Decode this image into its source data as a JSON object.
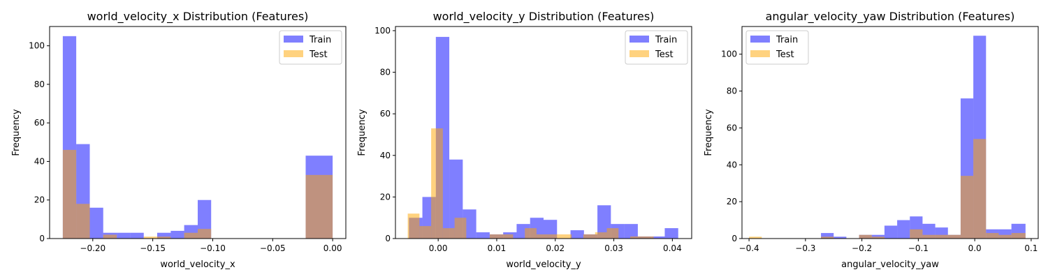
{
  "chart_data": [
    {
      "type": "bar",
      "title": "world_velocity_x Distribution (Features)",
      "xlabel": "world_velocity_x",
      "ylabel": "Frequency",
      "xlim": [
        -0.236,
        0.011
      ],
      "ylim": [
        0,
        110
      ],
      "xticks": [
        -0.2,
        -0.15,
        -0.1,
        -0.05,
        0.0
      ],
      "xtick_labels": [
        "−0.20",
        "−0.15",
        "−0.10",
        "−0.05",
        "0.00"
      ],
      "yticks": [
        0,
        20,
        40,
        60,
        80,
        100
      ],
      "ytick_labels": [
        "0",
        "20",
        "40",
        "60",
        "80",
        "100"
      ],
      "legend": "top-right",
      "series": [
        {
          "name": "Train",
          "color": "#0000ff",
          "alpha": 0.5,
          "bins": [
            [
              -0.225,
              -0.2138,
              105
            ],
            [
              -0.2138,
              -0.2025,
              49
            ],
            [
              -0.2025,
              -0.1913,
              16
            ],
            [
              -0.1913,
              -0.18,
              3
            ],
            [
              -0.18,
              -0.1688,
              3
            ],
            [
              -0.1688,
              -0.1575,
              3
            ],
            [
              -0.1463,
              -0.135,
              3
            ],
            [
              -0.135,
              -0.1238,
              4
            ],
            [
              -0.1238,
              -0.1125,
              7
            ],
            [
              -0.1125,
              -0.1013,
              20
            ],
            [
              -0.0225,
              0.0,
              43
            ]
          ]
        },
        {
          "name": "Test",
          "color": "#ffa500",
          "alpha": 0.5,
          "bins": [
            [
              -0.225,
              -0.2138,
              46
            ],
            [
              -0.2138,
              -0.2025,
              18
            ],
            [
              -0.1913,
              -0.18,
              2
            ],
            [
              -0.1575,
              -0.1463,
              1
            ],
            [
              -0.1463,
              -0.135,
              1
            ],
            [
              -0.1238,
              -0.1125,
              3
            ],
            [
              -0.1125,
              -0.1013,
              5
            ],
            [
              -0.0225,
              0.0,
              33
            ]
          ]
        }
      ]
    },
    {
      "type": "bar",
      "title": "world_velocity_y Distribution (Features)",
      "xlabel": "world_velocity_y",
      "ylabel": "Frequency",
      "xlim": [
        -0.0073,
        0.0433
      ],
      "ylim": [
        0,
        102
      ],
      "xticks": [
        0.0,
        0.01,
        0.02,
        0.03,
        0.04
      ],
      "xtick_labels": [
        "0.00",
        "0.01",
        "0.02",
        "0.03",
        "0.04"
      ],
      "yticks": [
        0,
        20,
        40,
        60,
        80,
        100
      ],
      "ytick_labels": [
        "0",
        "20",
        "40",
        "60",
        "80",
        "100"
      ],
      "legend": "top-right",
      "series": [
        {
          "name": "Train",
          "color": "#0000ff",
          "alpha": 0.5,
          "bins": [
            [
              -0.005,
              -0.0027,
              10
            ],
            [
              -0.0027,
              -0.0004,
              20
            ],
            [
              -0.0004,
              0.0019,
              97
            ],
            [
              0.0019,
              0.0042,
              38
            ],
            [
              0.0042,
              0.0065,
              14
            ],
            [
              0.0065,
              0.0088,
              3
            ],
            [
              0.0088,
              0.0111,
              2
            ],
            [
              0.0111,
              0.0134,
              3
            ],
            [
              0.0134,
              0.0157,
              7
            ],
            [
              0.0157,
              0.018,
              10
            ],
            [
              0.018,
              0.0203,
              9
            ],
            [
              0.0226,
              0.0249,
              4
            ],
            [
              0.0249,
              0.0272,
              2
            ],
            [
              0.0272,
              0.0295,
              16
            ],
            [
              0.0295,
              0.0318,
              7
            ],
            [
              0.0318,
              0.0341,
              7
            ],
            [
              0.0341,
              0.0364,
              1
            ],
            [
              0.0364,
              0.0387,
              1
            ],
            [
              0.0387,
              0.041,
              5
            ]
          ]
        },
        {
          "name": "Test",
          "color": "#ffa500",
          "alpha": 0.5,
          "bins": [
            [
              -0.0052,
              -0.0032,
              12
            ],
            [
              -0.0032,
              -0.0012,
              6
            ],
            [
              -0.0012,
              0.0008,
              53
            ],
            [
              0.0008,
              0.0028,
              5
            ],
            [
              0.0028,
              0.0048,
              10
            ],
            [
              0.0088,
              0.0108,
              2
            ],
            [
              0.0108,
              0.0128,
              2
            ],
            [
              0.0148,
              0.0168,
              5
            ],
            [
              0.0168,
              0.0188,
              2
            ],
            [
              0.0188,
              0.0208,
              2
            ],
            [
              0.0208,
              0.0228,
              2
            ],
            [
              0.0248,
              0.0268,
              2
            ],
            [
              0.0268,
              0.0288,
              3
            ],
            [
              0.0288,
              0.0308,
              5
            ],
            [
              0.0328,
              0.0348,
              1
            ],
            [
              0.0348,
              0.0368,
              1
            ]
          ]
        }
      ]
    },
    {
      "type": "bar",
      "title": "angular_velocity_yaw Distribution (Features)",
      "xlabel": "angular_velocity_yaw",
      "ylabel": "Frequency",
      "xlim": [
        -0.4125,
        0.1125
      ],
      "ylim": [
        0,
        115
      ],
      "xticks": [
        -0.4,
        -0.3,
        -0.2,
        -0.1,
        0.0,
        0.1
      ],
      "xtick_labels": [
        "−0.4",
        "−0.3",
        "−0.2",
        "−0.1",
        "0.0",
        "0.1"
      ],
      "yticks": [
        0,
        20,
        40,
        60,
        80,
        100
      ],
      "ytick_labels": [
        "0",
        "20",
        "40",
        "60",
        "80",
        "100"
      ],
      "legend": "top-left",
      "series": [
        {
          "name": "Train",
          "color": "#0000ff",
          "alpha": 0.5,
          "bins": [
            [
              -0.2725,
              -0.25,
              3
            ],
            [
              -0.25,
              -0.2275,
              1
            ],
            [
              -0.205,
              -0.1825,
              2
            ],
            [
              -0.1825,
              -0.16,
              2
            ],
            [
              -0.16,
              -0.1375,
              7
            ],
            [
              -0.1375,
              -0.115,
              10
            ],
            [
              -0.115,
              -0.0925,
              12
            ],
            [
              -0.0925,
              -0.07,
              8
            ],
            [
              -0.07,
              -0.0475,
              6
            ],
            [
              -0.0475,
              -0.025,
              2
            ],
            [
              -0.025,
              -0.0025,
              76
            ],
            [
              -0.0025,
              0.02,
              110
            ],
            [
              0.02,
              0.0425,
              5
            ],
            [
              0.0425,
              0.065,
              5
            ],
            [
              0.065,
              0.09,
              8
            ]
          ]
        },
        {
          "name": "Test",
          "color": "#ffa500",
          "alpha": 0.5,
          "bins": [
            [
              -0.4,
              -0.3775,
              1
            ],
            [
              -0.2725,
              -0.25,
              1
            ],
            [
              -0.205,
              -0.1825,
              2
            ],
            [
              -0.1825,
              -0.16,
              1
            ],
            [
              -0.115,
              -0.0925,
              5
            ],
            [
              -0.0925,
              -0.07,
              2
            ],
            [
              -0.07,
              -0.0475,
              2
            ],
            [
              -0.0475,
              -0.025,
              2
            ],
            [
              -0.025,
              -0.0025,
              34
            ],
            [
              -0.0025,
              0.02,
              54
            ],
            [
              0.02,
              0.0425,
              3
            ],
            [
              0.0425,
              0.065,
              2
            ],
            [
              0.065,
              0.09,
              3
            ]
          ]
        }
      ]
    }
  ]
}
